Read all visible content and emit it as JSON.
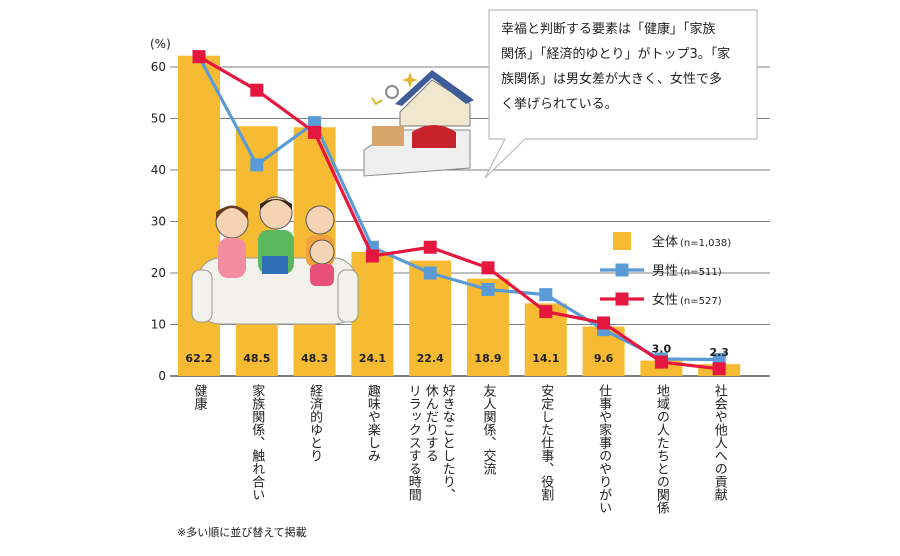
{
  "chart_data": {
    "type": "bar",
    "ylabel": "(%)",
    "ylim": [
      0,
      60
    ],
    "yticks": [
      0,
      10,
      20,
      30,
      40,
      50,
      60
    ],
    "grid": true,
    "categories": [
      "健康",
      "家族関係、触れ合い",
      "経済的ゆとり",
      "趣味や楽しみ",
      "好きなことしたり、休んだりするリラックスする時間",
      "友人関係、交流",
      "安定した仕事、役割",
      "仕事や家事のやりがい",
      "地域の人たちとの関係",
      "社会や他人への貢献"
    ],
    "category_lines": [
      [
        "健康"
      ],
      [
        "家族関係、触れ合い"
      ],
      [
        "経済的ゆとり"
      ],
      [
        "趣味や楽しみ"
      ],
      [
        "好きなことしたり、",
        "休んだりする",
        "リラックスする時間"
      ],
      [
        "友人関係、交流"
      ],
      [
        "安定した仕事、役割"
      ],
      [
        "仕事や家事のやりがい"
      ],
      [
        "地域の人たちとの関係"
      ],
      [
        "社会や他人への貢献"
      ]
    ],
    "series": [
      {
        "name": "全体",
        "n_label": "(n=1,038)",
        "kind": "bar",
        "color": "#f6bb33",
        "values": [
          62.2,
          48.5,
          48.3,
          24.1,
          22.4,
          18.9,
          14.1,
          9.6,
          3.0,
          2.3
        ],
        "labels": [
          "62.2",
          "48.5",
          "48.3",
          "24.1",
          "22.4",
          "18.9",
          "14.1",
          "9.6",
          "3.0",
          "2.3"
        ]
      },
      {
        "name": "男性",
        "n_label": "(n=511)",
        "kind": "line",
        "color": "#5b9bd5",
        "values": [
          62.0,
          41.0,
          49.2,
          25.0,
          20.0,
          16.8,
          15.8,
          9.0,
          3.3,
          3.2
        ]
      },
      {
        "name": "女性",
        "n_label": "(n=527)",
        "kind": "line",
        "color": "#e5173f",
        "values": [
          62.0,
          55.5,
          47.3,
          23.3,
          25.0,
          21.0,
          12.5,
          10.3,
          2.7,
          1.4
        ]
      }
    ],
    "legend_position": "right"
  },
  "callout": {
    "lines": [
      "幸福と判断する要素は「健康」「家族",
      "関係」「経済的ゆとり」がトップ3。「家",
      "族関係」は男女差が大きく、女性で多",
      "く挙げられている。"
    ]
  },
  "footnote": "※多い順に並び替えて掲載",
  "colors": {
    "bar": "#f6bb33",
    "male": "#5b9bd5",
    "female": "#e5173f",
    "grid": "#555555"
  }
}
